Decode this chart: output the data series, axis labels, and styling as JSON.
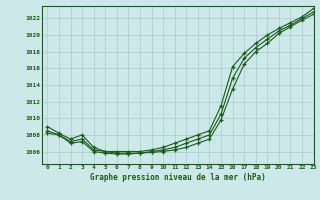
{
  "background_color": "#cce8e8",
  "grid_color": "#aacccc",
  "line_color": "#1a5c1a",
  "title": "Graphe pression niveau de la mer (hPa)",
  "title_color": "#1a5c1a",
  "xlim": [
    -0.5,
    23
  ],
  "ylim": [
    1004.5,
    1023.5
  ],
  "yticks": [
    1006,
    1008,
    1010,
    1012,
    1014,
    1016,
    1018,
    1020,
    1022
  ],
  "xticks": [
    0,
    1,
    2,
    3,
    4,
    5,
    6,
    7,
    8,
    9,
    10,
    11,
    12,
    13,
    14,
    15,
    16,
    17,
    18,
    19,
    20,
    21,
    22,
    23
  ],
  "series1": [
    1008.5,
    1008.0,
    1007.2,
    1007.5,
    1006.2,
    1006.0,
    1005.8,
    1005.8,
    1005.8,
    1006.0,
    1006.2,
    1006.5,
    1007.0,
    1007.5,
    1008.0,
    1010.5,
    1014.8,
    1017.2,
    1018.5,
    1019.5,
    1020.5,
    1021.2,
    1022.0,
    1022.8
  ],
  "series2": [
    1008.2,
    1008.0,
    1007.0,
    1007.2,
    1006.0,
    1005.8,
    1005.7,
    1005.7,
    1005.8,
    1005.9,
    1006.0,
    1006.2,
    1006.5,
    1007.0,
    1007.5,
    1009.8,
    1013.5,
    1016.5,
    1018.0,
    1019.0,
    1020.2,
    1021.0,
    1021.8,
    1022.5
  ],
  "series3": [
    1009.0,
    1008.2,
    1007.5,
    1008.0,
    1006.5,
    1006.0,
    1006.0,
    1006.0,
    1006.0,
    1006.2,
    1006.5,
    1007.0,
    1007.5,
    1008.0,
    1008.5,
    1011.5,
    1016.2,
    1017.8,
    1019.0,
    1020.0,
    1020.8,
    1021.5,
    1022.2,
    1023.2
  ]
}
